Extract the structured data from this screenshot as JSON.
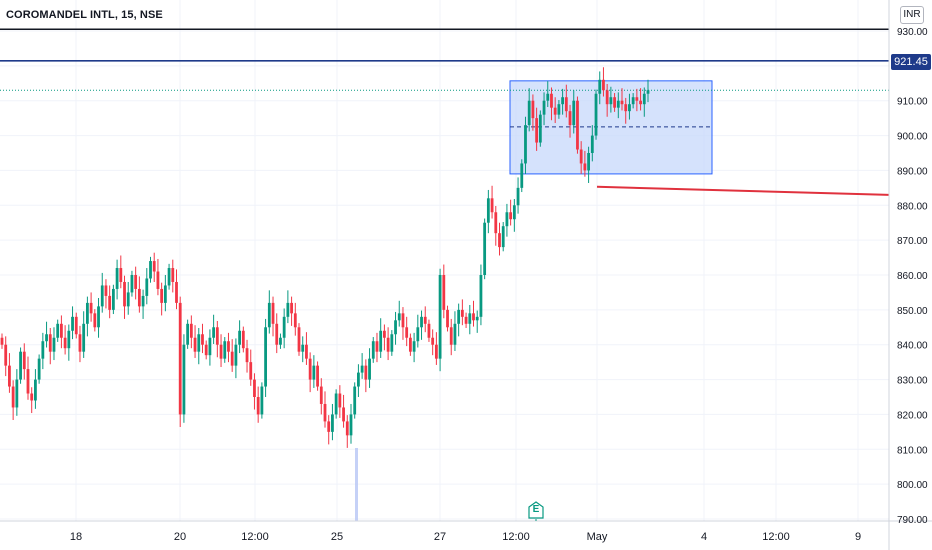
{
  "header": {
    "symbol_title": "COROMANDEL INTL, 15, NSE",
    "currency": "INR"
  },
  "price_tag": {
    "value": "921.45",
    "color": "#1e3a8a"
  },
  "earnings_marker": {
    "label": "E",
    "icon": "earnings-icon"
  },
  "colors": {
    "up": "#089981",
    "down": "#f23645",
    "grid": "#f0f3fa",
    "rectangle_fill": "#c7d8fb",
    "rectangle_border": "#2962ff",
    "trendline": "#e0313d",
    "resistance_dark": "#131722",
    "resistance_blue": "#1e3a8a"
  },
  "chart_data": {
    "type": "candlestick",
    "yticks": [
      "930.00",
      "920.00",
      "910.00",
      "900.00",
      "890.00",
      "880.00",
      "870.00",
      "860.00",
      "850.00",
      "840.00",
      "830.00",
      "820.00",
      "810.00",
      "800.00",
      "790.00"
    ],
    "xticks": [
      "18",
      "20",
      "12:00",
      "25",
      "27",
      "12:00",
      "May",
      "4",
      "12:00",
      "9"
    ],
    "ylim": [
      787,
      935
    ],
    "horizontal_lines": [
      {
        "name": "resistance-930",
        "price": 930.5,
        "style": "solid",
        "color": "#131722"
      },
      {
        "name": "resistance-921",
        "price": 921.45,
        "style": "solid",
        "color": "#1e3a8a"
      },
      {
        "name": "last-price-dotted",
        "price": 913.0,
        "style": "dotted",
        "color": "#089981"
      }
    ],
    "rectangle": {
      "top": 915.7,
      "bottom": 889.0,
      "mid": 902.5
    },
    "trendline": {
      "start_price": 885.3,
      "end_price": 883.0
    },
    "volume_spike": {
      "near": "25"
    },
    "closes": [
      840,
      834,
      828,
      822,
      830,
      838,
      833,
      826,
      824,
      830,
      836,
      841,
      843,
      838,
      842,
      846,
      842,
      839,
      844,
      848,
      843,
      838,
      846,
      852,
      849,
      845,
      851,
      857,
      854,
      850,
      856,
      862,
      858,
      851,
      855,
      860,
      856,
      851,
      854,
      859,
      864,
      861,
      856,
      852,
      857,
      862,
      858,
      852,
      820,
      840,
      846,
      842,
      838,
      843,
      840,
      837,
      842,
      845,
      840,
      836,
      841,
      838,
      834,
      840,
      844,
      839,
      835,
      830,
      825,
      820,
      828,
      845,
      852,
      846,
      840,
      842,
      848,
      852,
      849,
      845,
      838,
      840,
      836,
      830,
      834,
      828,
      823,
      818,
      815,
      820,
      826,
      822,
      818,
      814,
      820,
      828,
      832,
      834,
      830,
      836,
      841,
      838,
      844,
      842,
      838,
      843,
      847,
      849,
      845,
      842,
      838,
      841,
      845,
      848,
      846,
      842,
      840,
      836,
      860,
      850,
      845,
      840,
      846,
      850,
      848,
      846,
      849,
      847,
      848,
      860,
      875,
      882,
      878,
      872,
      868,
      874,
      878,
      876,
      880,
      885,
      892,
      903,
      910,
      905,
      898,
      906,
      910,
      912,
      908,
      906,
      909,
      911,
      907,
      903,
      910,
      896,
      892,
      890,
      895,
      900,
      912,
      916,
      913,
      909,
      911,
      908,
      910,
      909,
      907,
      909,
      911,
      910,
      909,
      912,
      913
    ]
  }
}
